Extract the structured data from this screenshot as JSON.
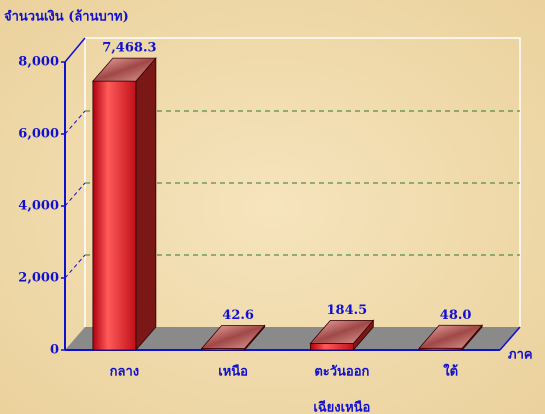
{
  "chart_data": {
    "type": "bar3d",
    "y_label": "จำนวนเงิน (ล้านบาท)",
    "x_label": "ภาค",
    "categories": [
      [
        "กลาง"
      ],
      [
        "เหนือ"
      ],
      [
        "ตะวันออก",
        "เฉียงเหนือ"
      ],
      [
        "ใต้"
      ]
    ],
    "values": [
      7468.3,
      42.6,
      184.5,
      48.0
    ],
    "value_labels": [
      "7,468.3",
      "42.6",
      "184.5",
      "48.0"
    ],
    "color": "#e8202a",
    "ylim": [
      0,
      8000
    ],
    "yticks": [
      0,
      {
        "value": 2000,
        "label": "2,000"
      },
      {
        "value": 4000,
        "label": "4,000"
      },
      {
        "value": 6000,
        "label": "6,000"
      },
      {
        "value": 8000,
        "label": "8,000"
      }
    ],
    "grid": true
  }
}
